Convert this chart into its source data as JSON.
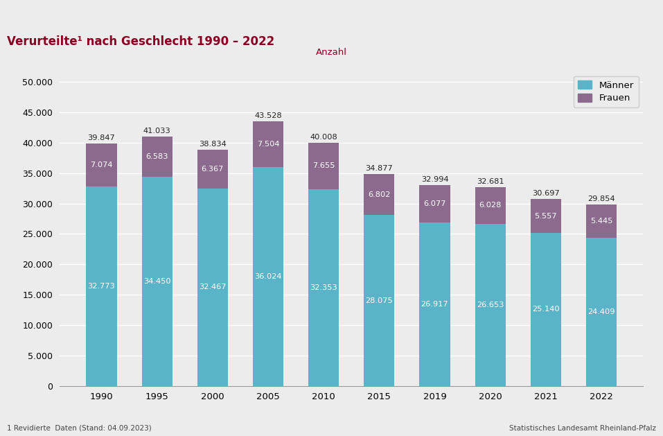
{
  "title": "Verurteilte¹ nach Geschlecht 1990 – 2022",
  "ylabel": "Anzahl",
  "years": [
    "1990",
    "1995",
    "2000",
    "2005",
    "2010",
    "2015",
    "2019",
    "2020",
    "2021",
    "2022"
  ],
  "maenner": [
    32773,
    34450,
    32467,
    36024,
    32353,
    28075,
    26917,
    26653,
    25140,
    24409
  ],
  "frauen": [
    7074,
    6583,
    6367,
    7504,
    7655,
    6802,
    6077,
    6028,
    5557,
    5445
  ],
  "totals": [
    39847,
    41033,
    38834,
    43528,
    40008,
    34877,
    32994,
    32681,
    30697,
    29854
  ],
  "maenner_color": "#5ab4c8",
  "frauen_color": "#8b6a8e",
  "title_color": "#8b0022",
  "ylabel_color": "#8b0022",
  "background_color": "#ececec",
  "white_band_color": "#ffffff",
  "top_bar_color": "#7b1030",
  "footer_left": "1 Revidierte  Daten (Stand: 04.09.2023)",
  "footer_right": "Statistisches Landesamt Rheinland-Pfalz",
  "legend_maenner": "Männer",
  "legend_frauen": "Frauen",
  "yticks": [
    0,
    5000,
    10000,
    15000,
    20000,
    25000,
    30000,
    35000,
    40000,
    45000,
    50000
  ],
  "ylim": [
    0,
    52000
  ]
}
